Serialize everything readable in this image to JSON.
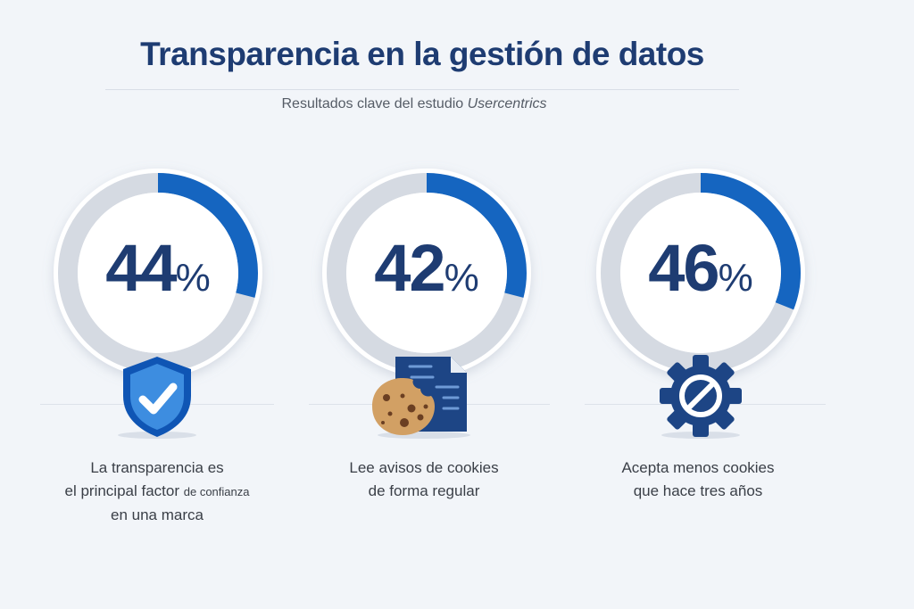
{
  "header": {
    "title": "Transparencia en la gestión de datos",
    "subtitle_prefix": "Resultados clave del estudio ",
    "subtitle_source": "Usercentrics"
  },
  "colors": {
    "accent": "#1565c0",
    "navy": "#1e3c72",
    "track": "#d5dae2",
    "background": "#f2f5f9"
  },
  "chart_data": {
    "type": "donut",
    "items": [
      {
        "value": 44,
        "label": "44",
        "unit": "%",
        "ring_fill_percent": 29,
        "icon": "shield-check-icon",
        "caption_lines": [
          "La transparencia es",
          "el principal factor",
          "de confianza",
          "en una marca"
        ]
      },
      {
        "value": 42,
        "label": "42",
        "unit": "%",
        "ring_fill_percent": 29,
        "icon": "cookie-document-icon",
        "caption_lines": [
          "Lee avisos de cookies",
          "de forma regular"
        ]
      },
      {
        "value": 46,
        "label": "46",
        "unit": "%",
        "ring_fill_percent": 31,
        "icon": "gear-blocked-icon",
        "caption_lines": [
          "Acepta menos cookies",
          "que hace tres años"
        ]
      }
    ]
  }
}
